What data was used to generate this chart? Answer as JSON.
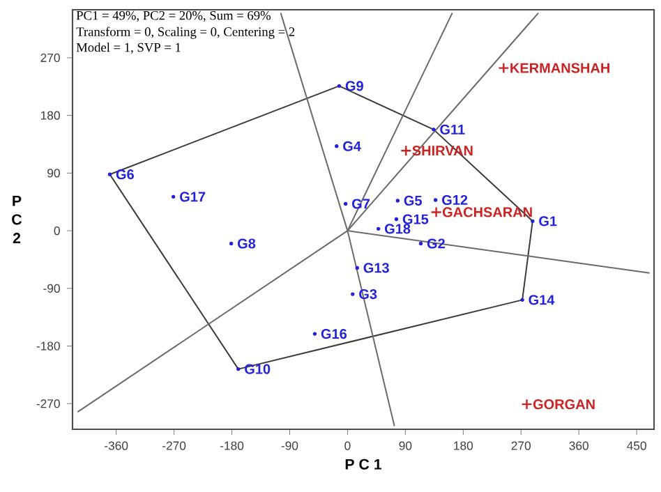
{
  "chart_data": {
    "type": "scatter",
    "xlabel": "P C 1",
    "ylabel": "P C 2",
    "annotations": [
      "PC1 = 49%, PC2 = 20%, Sum = 69%",
      "Transform = 0, Scaling = 0, Centering = 2",
      "Model = 1, SVP = 1"
    ],
    "xlim": [
      -428,
      477
    ],
    "ylim": [
      -310,
      345
    ],
    "xticks": [
      -360,
      -270,
      -180,
      -90,
      0,
      90,
      180,
      270,
      360,
      450
    ],
    "yticks": [
      -270,
      -180,
      -90,
      0,
      90,
      180,
      270
    ],
    "series": [
      {
        "type": "line",
        "color": "#3a3a3a",
        "marker": "none",
        "x": [
          -370,
          -13,
          134,
          288
        ],
        "values": [
          88,
          226,
          158,
          15
        ]
      },
      {
        "type": "line",
        "color": "#3a3a3a",
        "marker": "none",
        "x": [
          -370,
          -170,
          272,
          288
        ],
        "values": [
          88,
          -216,
          -108,
          15
        ]
      },
      {
        "type": "line",
        "color": "#6a6a6a",
        "marker": "none",
        "x": [
          -104,
          0,
          73
        ],
        "values": [
          340,
          0,
          -305
        ]
      },
      {
        "type": "line",
        "color": "#6a6a6a",
        "marker": "none",
        "x": [
          -420,
          0,
          297
        ],
        "values": [
          -283,
          0,
          340
        ]
      },
      {
        "type": "line",
        "color": "#6a6a6a",
        "marker": "none",
        "x": [
          163,
          0,
          470
        ],
        "values": [
          340,
          0,
          -66
        ]
      },
      {
        "color": "#2222dd",
        "marker": "circle",
        "x": [
          288,
          114,
          8,
          -17,
          78,
          -370,
          -3,
          -181,
          -13,
          -170,
          134,
          137,
          15,
          272,
          76,
          -51,
          -271,
          48
        ],
        "values": [
          15,
          -20,
          -99,
          132,
          47,
          88,
          42,
          -20,
          226,
          -216,
          158,
          48,
          -58,
          -108,
          18,
          -161,
          53,
          3
        ],
        "value_labels": [
          "G1",
          "G2",
          "G3",
          "G4",
          "G5",
          "G6",
          "G7",
          "G8",
          "G9",
          "G10",
          "G11",
          "G12",
          "G13",
          "G14",
          "G15",
          "G16",
          "G17",
          "G18"
        ]
      },
      {
        "color": "#cc2222",
        "marker": "cross",
        "x": [
          243,
          91,
          138,
          279
        ],
        "values": [
          254,
          125,
          29,
          -271
        ],
        "value_labels": [
          "KERMANSHAH",
          "SHIRVAN",
          "GACHSARAN",
          "GORGAN"
        ]
      }
    ]
  }
}
